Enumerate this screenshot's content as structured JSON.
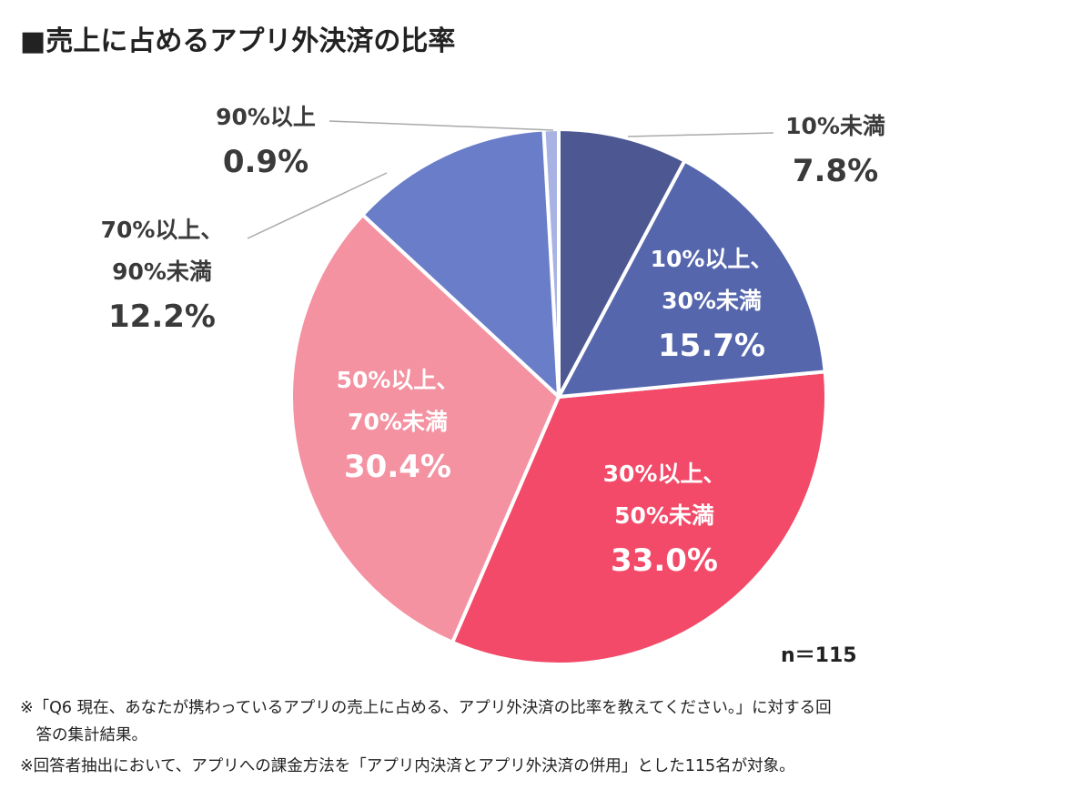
{
  "title": "■売上に占めるアプリ外決済の比率",
  "chart_data": {
    "type": "pie",
    "start": "top",
    "direction": "clockwise",
    "slices": [
      {
        "label_lines": [
          "10%未満"
        ],
        "value": 7.8,
        "value_label": "7.8%",
        "color": "#4d5893"
      },
      {
        "label_lines": [
          "10%以上、",
          "30%未満"
        ],
        "value": 15.7,
        "value_label": "15.7%",
        "color": "#5566ad"
      },
      {
        "label_lines": [
          "30%以上、",
          "50%未満"
        ],
        "value": 33.0,
        "value_label": "33.0%",
        "color": "#f24a68"
      },
      {
        "label_lines": [
          "50%以上、",
          "70%未満"
        ],
        "value": 30.4,
        "value_label": "30.4%",
        "color": "#f492a2"
      },
      {
        "label_lines": [
          "70%以上、",
          "90%未満"
        ],
        "value": 12.2,
        "value_label": "12.2%",
        "color": "#6a7dc8"
      },
      {
        "label_lines": [
          "90%以上"
        ],
        "value": 0.9,
        "value_label": "0.9%",
        "color": "#a8b3e3"
      }
    ],
    "n_label": "n＝115"
  },
  "notes": [
    "※「Q6 現在、あなたが携わっているアプリの売上に占める、アプリ外決済の比率を教えてください。」に対する回",
    "　答の集計結果。",
    "※回答者抽出において、アプリへの課金方法を「アプリ内決済とアプリ外決済の併用」とした115名が対象。"
  ]
}
